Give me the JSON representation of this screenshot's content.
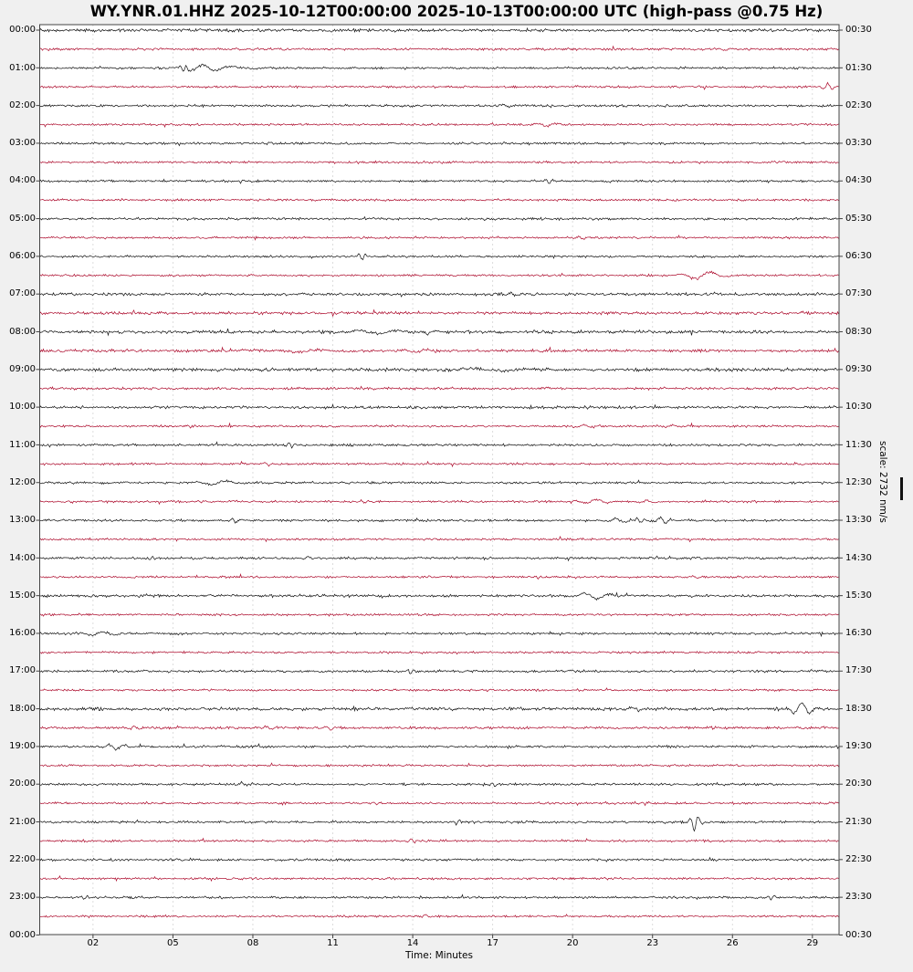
{
  "title": "WY.YNR.01.HHZ 2025-10-12T00:00:00 2025-10-13T00:00:00 UTC (high-pass @0.75 Hz)",
  "x_axis_title": "Time: Minutes",
  "scale_label": "scale: 2732 nm/s",
  "colors": {
    "background": "#f0f0f0",
    "plot_background": "#ffffff",
    "black_trace": "#1b1b1b",
    "red_trace": "#B01535",
    "grid": "#d9d9d9",
    "axis": "#444444"
  },
  "chart_data": {
    "type": "line",
    "subtype": "helicorder-dayplot",
    "station_id": "WY.YNR.01.HHZ",
    "window_start": "2025-10-12T00:00:00",
    "window_end": "2025-10-13T00:00:00",
    "timezone": "UTC",
    "filter_note": "high-pass @0.75 Hz",
    "scale_value_nm_per_s": 2732,
    "minutes_per_line": 30,
    "x_range_minutes": [
      0,
      30
    ],
    "grid": "vertical-dashed",
    "x_tick_labels": [
      "02",
      "05",
      "08",
      "11",
      "14",
      "17",
      "20",
      "23",
      "26",
      "29"
    ],
    "x_tick_minutes": [
      2,
      5,
      8,
      11,
      14,
      17,
      20,
      23,
      26,
      29
    ],
    "left_time_labels": [
      "00:00",
      "01:00",
      "02:00",
      "03:00",
      "04:00",
      "05:00",
      "06:00",
      "07:00",
      "08:00",
      "09:00",
      "10:00",
      "11:00",
      "12:00",
      "13:00",
      "14:00",
      "15:00",
      "16:00",
      "17:00",
      "18:00",
      "19:00",
      "20:00",
      "21:00",
      "22:00",
      "23:00",
      "00:00"
    ],
    "right_time_labels": [
      "00:30",
      "01:30",
      "02:30",
      "03:30",
      "04:30",
      "05:30",
      "06:30",
      "07:30",
      "08:30",
      "09:30",
      "10:30",
      "11:30",
      "12:30",
      "13:30",
      "14:30",
      "15:30",
      "16:30",
      "17:30",
      "18:30",
      "19:30",
      "20:30",
      "21:30",
      "22:30",
      "23:30",
      "00:30"
    ],
    "rows": [
      {
        "start": "00:00",
        "color": "black",
        "namp": 1.4,
        "events": []
      },
      {
        "start": "00:30",
        "color": "red",
        "namp": 1.1,
        "events": [
          {
            "m": 25.7,
            "a": 1.6,
            "w": 0.3
          }
        ]
      },
      {
        "start": "01:00",
        "color": "black",
        "namp": 1.0,
        "events": [
          {
            "m": 5.45,
            "a": 6,
            "w": 0.12
          },
          {
            "m": 5.95,
            "a": 5,
            "w": 0.5
          },
          {
            "m": 6.9,
            "a": 2,
            "w": 0.8
          }
        ]
      },
      {
        "start": "01:30",
        "color": "red",
        "namp": 1.0,
        "events": [
          {
            "m": 29.6,
            "a": 5,
            "w": 0.18
          }
        ]
      },
      {
        "start": "02:00",
        "color": "black",
        "namp": 1.1,
        "events": [
          {
            "m": 17.5,
            "a": 1.8,
            "w": 0.3
          }
        ]
      },
      {
        "start": "02:30",
        "color": "red",
        "namp": 1.0,
        "events": [
          {
            "m": 19.1,
            "a": 2.4,
            "w": 0.35
          }
        ]
      },
      {
        "start": "03:00",
        "color": "black",
        "namp": 1.1,
        "events": [
          {
            "m": 8.6,
            "a": 1.6,
            "w": 0.2
          }
        ]
      },
      {
        "start": "03:30",
        "color": "red",
        "namp": 1.0,
        "events": []
      },
      {
        "start": "04:00",
        "color": "black",
        "namp": 1.1,
        "events": [
          {
            "m": 19.1,
            "a": 4,
            "w": 0.13
          }
        ]
      },
      {
        "start": "04:30",
        "color": "red",
        "namp": 1.0,
        "events": []
      },
      {
        "start": "05:00",
        "color": "black",
        "namp": 1.1,
        "events": []
      },
      {
        "start": "05:30",
        "color": "red",
        "namp": 1.0,
        "events": [
          {
            "m": 20.3,
            "a": 2.4,
            "w": 0.2
          }
        ]
      },
      {
        "start": "06:00",
        "color": "black",
        "namp": 1.0,
        "events": [
          {
            "m": 12.1,
            "a": 4.5,
            "w": 0.13
          }
        ]
      },
      {
        "start": "06:30",
        "color": "red",
        "namp": 1.0,
        "events": [
          {
            "m": 24.9,
            "a": 5,
            "w": 0.6
          }
        ]
      },
      {
        "start": "07:00",
        "color": "black",
        "namp": 1.3,
        "events": [
          {
            "m": 17.7,
            "a": 2,
            "w": 0.2
          }
        ]
      },
      {
        "start": "07:30",
        "color": "red",
        "namp": 1.35,
        "events": []
      },
      {
        "start": "08:00",
        "color": "black",
        "namp": 1.4,
        "events": [
          {
            "m": 12.8,
            "a": 2.5,
            "w": 0.8
          },
          {
            "m": 14.6,
            "a": 1.6,
            "w": 0.3
          }
        ]
      },
      {
        "start": "08:30",
        "color": "red",
        "namp": 1.4,
        "events": [
          {
            "m": 10.2,
            "a": 2,
            "w": 0.9
          },
          {
            "m": 14.4,
            "a": 2,
            "w": 0.5
          }
        ]
      },
      {
        "start": "09:00",
        "color": "black",
        "namp": 1.5,
        "events": [
          {
            "m": 16.5,
            "a": 1.8,
            "w": 1.2
          }
        ]
      },
      {
        "start": "09:30",
        "color": "red",
        "namp": 1.2,
        "events": []
      },
      {
        "start": "10:00",
        "color": "black",
        "namp": 1.3,
        "events": []
      },
      {
        "start": "10:30",
        "color": "red",
        "namp": 1.0,
        "events": [
          {
            "m": 20.4,
            "a": 1.8,
            "w": 0.3
          },
          {
            "m": 23.7,
            "a": 1.8,
            "w": 0.3
          }
        ]
      },
      {
        "start": "11:00",
        "color": "black",
        "namp": 1.1,
        "events": [
          {
            "m": 9.4,
            "a": 4,
            "w": 0.13
          }
        ]
      },
      {
        "start": "11:30",
        "color": "red",
        "namp": 1.0,
        "events": [
          {
            "m": 8.6,
            "a": 2.2,
            "w": 0.18
          }
        ]
      },
      {
        "start": "12:00",
        "color": "black",
        "namp": 1.1,
        "events": [
          {
            "m": 6.7,
            "a": 2.5,
            "w": 0.6
          }
        ]
      },
      {
        "start": "12:30",
        "color": "red",
        "namp": 1.0,
        "events": [
          {
            "m": 12.05,
            "a": 2,
            "w": 0.14
          },
          {
            "m": 20.9,
            "a": 2.5,
            "w": 0.45
          },
          {
            "m": 22.8,
            "a": 2,
            "w": 0.3
          }
        ]
      },
      {
        "start": "13:00",
        "color": "black",
        "namp": 1.1,
        "events": [
          {
            "m": 7.3,
            "a": 3.5,
            "w": 0.14
          },
          {
            "m": 21.8,
            "a": 3,
            "w": 0.35
          },
          {
            "m": 22.5,
            "a": 3.5,
            "w": 0.14
          },
          {
            "m": 23.4,
            "a": 5,
            "w": 0.22
          }
        ]
      },
      {
        "start": "13:30",
        "color": "red",
        "namp": 1.0,
        "events": []
      },
      {
        "start": "14:00",
        "color": "black",
        "namp": 1.1,
        "events": [
          {
            "m": 4.2,
            "a": 3,
            "w": 0.1
          },
          {
            "m": 10,
            "a": 1.8,
            "w": 0.2
          }
        ]
      },
      {
        "start": "14:30",
        "color": "red",
        "namp": 1.0,
        "events": [
          {
            "m": 24.5,
            "a": 2,
            "w": 0.2
          }
        ]
      },
      {
        "start": "15:00",
        "color": "black",
        "namp": 1.25,
        "events": [
          {
            "m": 20.8,
            "a": 4,
            "w": 0.5
          }
        ]
      },
      {
        "start": "15:30",
        "color": "red",
        "namp": 1.0,
        "events": []
      },
      {
        "start": "16:00",
        "color": "black",
        "namp": 1.1,
        "events": [
          {
            "m": 2.3,
            "a": 3,
            "w": 0.45
          }
        ]
      },
      {
        "start": "16:30",
        "color": "red",
        "namp": 1.0,
        "events": []
      },
      {
        "start": "17:00",
        "color": "black",
        "namp": 1.1,
        "events": [
          {
            "m": 13.9,
            "a": 3.5,
            "w": 0.12
          }
        ]
      },
      {
        "start": "17:30",
        "color": "red",
        "namp": 1.0,
        "events": []
      },
      {
        "start": "18:00",
        "color": "black",
        "namp": 1.5,
        "events": [
          {
            "m": 22.2,
            "a": 2.5,
            "w": 0.3
          },
          {
            "m": 28.6,
            "a": 10,
            "w": 0.3
          }
        ]
      },
      {
        "start": "18:30",
        "color": "red",
        "namp": 1.25,
        "events": [
          {
            "m": 3.65,
            "a": 2,
            "w": 0.2
          },
          {
            "m": 8.6,
            "a": 2,
            "w": 0.2
          },
          {
            "m": 10.85,
            "a": 2,
            "w": 0.2
          }
        ]
      },
      {
        "start": "19:00",
        "color": "black",
        "namp": 1.1,
        "events": [
          {
            "m": 2.9,
            "a": 4,
            "w": 0.3
          }
        ]
      },
      {
        "start": "19:30",
        "color": "red",
        "namp": 1.0,
        "events": []
      },
      {
        "start": "20:00",
        "color": "black",
        "namp": 1.1,
        "events": [
          {
            "m": 7.6,
            "a": 1.8,
            "w": 0.2
          },
          {
            "m": 17,
            "a": 2.5,
            "w": 0.12
          }
        ]
      },
      {
        "start": "20:30",
        "color": "red",
        "namp": 1.0,
        "events": [
          {
            "m": 12.6,
            "a": 3,
            "w": 0.12
          },
          {
            "m": 22.7,
            "a": 2.5,
            "w": 0.15
          }
        ]
      },
      {
        "start": "21:00",
        "color": "black",
        "namp": 1.1,
        "events": [
          {
            "m": 15.65,
            "a": 3,
            "w": 0.12
          },
          {
            "m": 24.6,
            "a": 10,
            "w": 0.16
          }
        ]
      },
      {
        "start": "21:30",
        "color": "red",
        "namp": 1.0,
        "events": [
          {
            "m": 13.9,
            "a": 3,
            "w": 0.15
          }
        ]
      },
      {
        "start": "22:00",
        "color": "black",
        "namp": 1.1,
        "events": []
      },
      {
        "start": "22:30",
        "color": "red",
        "namp": 1.0,
        "events": []
      },
      {
        "start": "23:00",
        "color": "black",
        "namp": 1.1,
        "events": [
          {
            "m": 1.7,
            "a": 2.5,
            "w": 0.12
          },
          {
            "m": 27.5,
            "a": 3,
            "w": 0.12
          }
        ]
      },
      {
        "start": "23:30",
        "color": "red",
        "namp": 1.0,
        "events": [
          {
            "m": 14.45,
            "a": 2.5,
            "w": 0.15
          }
        ]
      }
    ]
  }
}
